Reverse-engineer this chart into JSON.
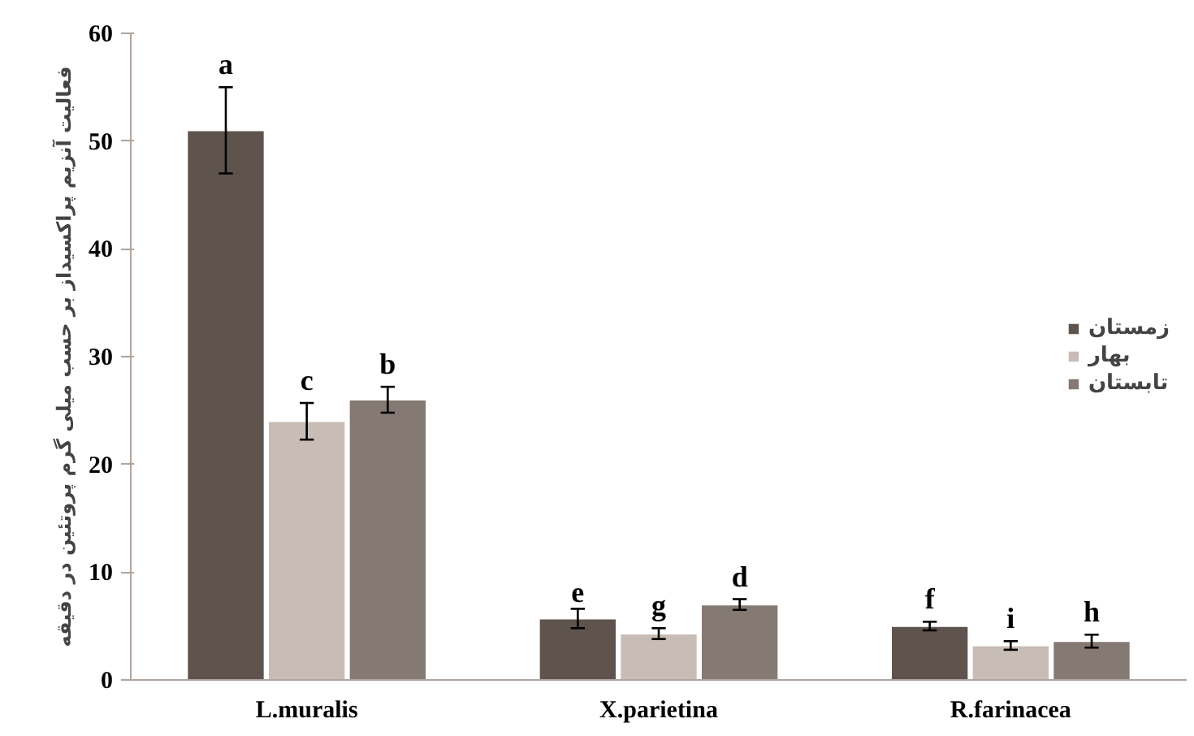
{
  "chart_data": {
    "type": "bar",
    "ylabel": "فعالیت آنزیم پراکسیداز بر حسب میلی گرم پروتئین در دقیقه",
    "categories": [
      "L.muralis",
      "X.parietina",
      "R.farinacea"
    ],
    "series": [
      {
        "name": "زمستان",
        "color": "#5e534d",
        "values": [
          51,
          5.7,
          5.0
        ],
        "errors": [
          4,
          0.9,
          0.4
        ],
        "value_labels": [
          "a",
          "e",
          "f"
        ]
      },
      {
        "name": "بهار",
        "color": "#c8bcb6",
        "values": [
          24,
          4.3,
          3.2
        ],
        "errors": [
          1.7,
          0.5,
          0.4
        ],
        "value_labels": [
          "c",
          "g",
          "i"
        ]
      },
      {
        "name": "تابستان",
        "color": "#857a73",
        "values": [
          26,
          7.0,
          3.6
        ],
        "errors": [
          1.2,
          0.5,
          0.6
        ],
        "value_labels": [
          "b",
          "d",
          "h"
        ]
      }
    ],
    "ylim": [
      0,
      60
    ],
    "yticks": [
      0,
      10,
      20,
      30,
      40,
      50,
      60
    ],
    "grid": false,
    "legend": "right"
  }
}
